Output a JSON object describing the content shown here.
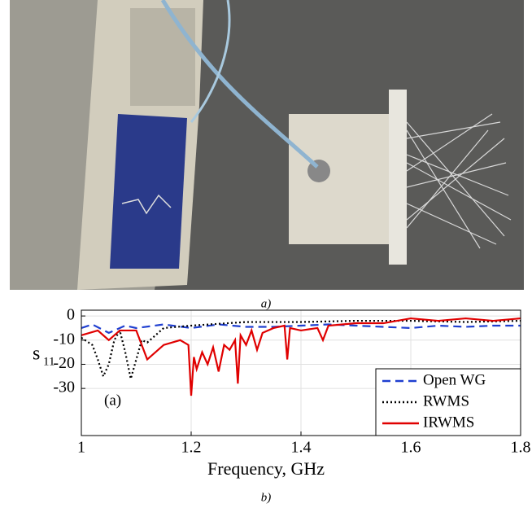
{
  "caption_a": "a)",
  "caption_b": "b)",
  "chart_data": {
    "type": "line",
    "xlabel": "Frequency, GHz",
    "ylabel": "s",
    "ylabel_subscript": "11",
    "annotation": "(a)",
    "xlim": [
      1,
      1.8
    ],
    "xticks": [
      1,
      1.2,
      1.4,
      1.6,
      1.8
    ],
    "ylim": [
      -49.5,
      2.4
    ],
    "yticks": [
      0,
      -10,
      -20,
      -30
    ],
    "grid": true,
    "legend": "lower right",
    "series": [
      {
        "name": "Open WG",
        "color": "#1f3fd0",
        "style": "dashed",
        "x": [
          1,
          1.02,
          1.05,
          1.08,
          1.1,
          1.15,
          1.2,
          1.25,
          1.3,
          1.35,
          1.4,
          1.45,
          1.5,
          1.55,
          1.6,
          1.65,
          1.7,
          1.75,
          1.8
        ],
        "values": [
          -5,
          -3.5,
          -7,
          -4,
          -5,
          -3.5,
          -5,
          -3.5,
          -4.5,
          -4.5,
          -4,
          -3.5,
          -4,
          -4.5,
          -5,
          -4,
          -4.5,
          -4,
          -4
        ]
      },
      {
        "name": "RWMS",
        "color": "#000000",
        "style": "dotted",
        "x": [
          1,
          1.02,
          1.03,
          1.04,
          1.05,
          1.06,
          1.07,
          1.08,
          1.09,
          1.1,
          1.11,
          1.12,
          1.13,
          1.15,
          1.2,
          1.3,
          1.4,
          1.5,
          1.6,
          1.7,
          1.8
        ],
        "values": [
          -9,
          -12,
          -18,
          -25,
          -20,
          -10,
          -6,
          -15,
          -26,
          -18,
          -10,
          -11,
          -9,
          -5,
          -4,
          -2.5,
          -2.5,
          -2,
          -2,
          -2.5,
          -2
        ]
      },
      {
        "name": "IRWMS",
        "color": "#e00000",
        "style": "solid",
        "x": [
          1,
          1.03,
          1.05,
          1.07,
          1.1,
          1.12,
          1.15,
          1.18,
          1.195,
          1.2,
          1.205,
          1.21,
          1.22,
          1.23,
          1.24,
          1.25,
          1.26,
          1.27,
          1.28,
          1.285,
          1.29,
          1.3,
          1.31,
          1.32,
          1.33,
          1.35,
          1.37,
          1.375,
          1.38,
          1.4,
          1.43,
          1.44,
          1.45,
          1.5,
          1.55,
          1.6,
          1.65,
          1.7,
          1.75,
          1.8
        ],
        "values": [
          -8,
          -6,
          -10,
          -6,
          -6,
          -18,
          -12,
          -10,
          -12,
          -33,
          -17,
          -22,
          -15,
          -20,
          -13,
          -23,
          -12,
          -14,
          -10,
          -28,
          -8,
          -12,
          -6,
          -14,
          -7,
          -5,
          -4,
          -18,
          -5,
          -6,
          -5,
          -10,
          -4,
          -3,
          -3,
          -1,
          -2,
          -1,
          -2,
          -1
        ]
      }
    ]
  }
}
